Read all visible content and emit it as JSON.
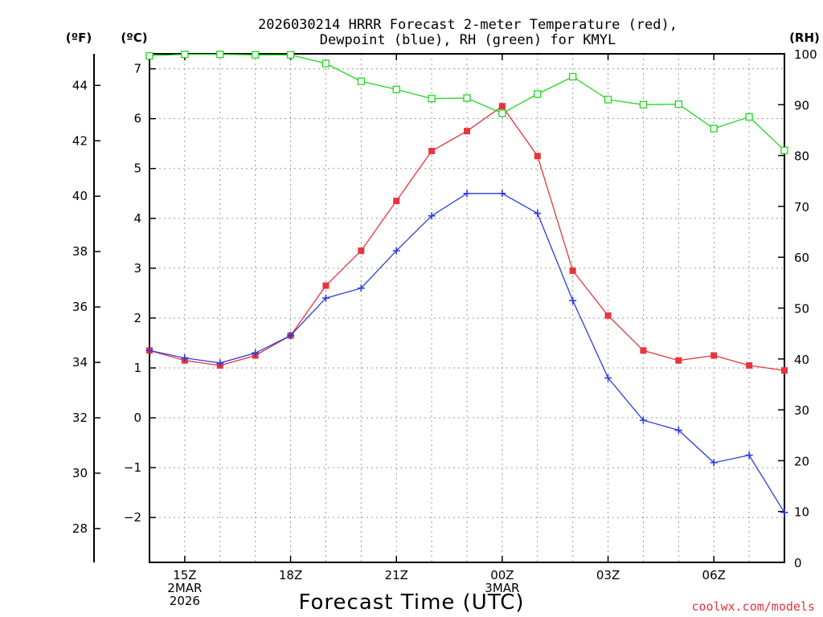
{
  "chart_data": {
    "type": "line",
    "title_line1": "2026030214 HRRR Forecast 2-meter Temperature (red),",
    "title_line2": "Dewpoint (blue), RH (green) for KMYL",
    "xlabel": "Forecast Time (UTC)",
    "credit": "coolwx.com/models",
    "units": {
      "fahrenheit": "(ºF)",
      "celsius": "(ºC)",
      "rh": "(RH)"
    },
    "x": [
      14,
      15,
      16,
      17,
      18,
      19,
      20,
      21,
      22,
      23,
      24,
      25,
      26,
      27,
      28,
      29,
      30,
      31,
      32
    ],
    "xlim": [
      14,
      32
    ],
    "x_ticks": [
      {
        "x": 15,
        "lines": [
          "15Z",
          "2MAR",
          "2026"
        ]
      },
      {
        "x": 18,
        "lines": [
          "18Z"
        ]
      },
      {
        "x": 21,
        "lines": [
          "21Z"
        ]
      },
      {
        "x": 24,
        "lines": [
          "00Z",
          "3MAR"
        ]
      },
      {
        "x": 27,
        "lines": [
          "03Z"
        ]
      },
      {
        "x": 30,
        "lines": [
          "06Z"
        ]
      }
    ],
    "celsius_axis": {
      "ylim": [
        -2.9,
        7.3
      ],
      "ticks": [
        -2,
        -1,
        0,
        1,
        2,
        3,
        4,
        5,
        6,
        7
      ]
    },
    "fahrenheit_axis": {
      "ticks": [
        28,
        30,
        32,
        34,
        36,
        38,
        40,
        42,
        44
      ]
    },
    "rh_axis": {
      "ylim": [
        0,
        100
      ],
      "ticks": [
        0,
        10,
        20,
        30,
        40,
        50,
        60,
        70,
        80,
        90,
        100
      ]
    },
    "series": [
      {
        "name": "2-meter Temperature",
        "axis": "celsius",
        "color": "#e8343c",
        "marker": "filled-square",
        "values": [
          1.35,
          1.15,
          1.05,
          1.25,
          1.65,
          2.65,
          3.35,
          4.35,
          5.35,
          5.75,
          6.25,
          5.25,
          2.95,
          2.05,
          1.35,
          1.15,
          1.25,
          1.05,
          0.95
        ]
      },
      {
        "name": "Dewpoint",
        "axis": "celsius",
        "color": "#2a3de0",
        "marker": "plus",
        "values": [
          1.35,
          1.2,
          1.1,
          1.3,
          1.65,
          2.4,
          2.6,
          3.35,
          4.05,
          4.5,
          4.5,
          4.1,
          2.35,
          0.8,
          -0.05,
          -0.25,
          -0.9,
          -0.75,
          -1.9
        ]
      },
      {
        "name": "Relative Humidity",
        "axis": "rh",
        "color": "#22d622",
        "marker": "open-square",
        "values": [
          99.6,
          99.9,
          99.9,
          99.8,
          99.8,
          98.1,
          94.6,
          93.0,
          91.2,
          91.3,
          88.3,
          92.1,
          95.5,
          91.0,
          90.0,
          90.1,
          85.3,
          87.6,
          81.0
        ]
      }
    ]
  }
}
